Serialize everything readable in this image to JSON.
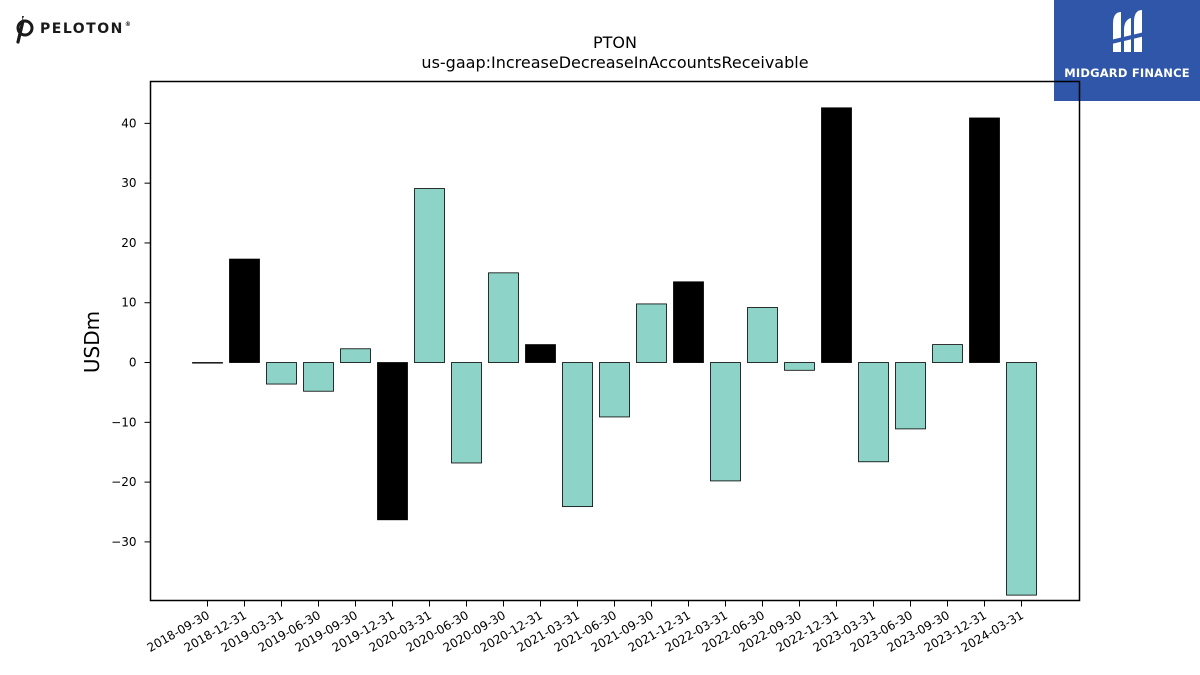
{
  "logos": {
    "left_brand": "PELOTON",
    "right_brand": "MIDGARD FINANCE"
  },
  "chart_data": {
    "type": "bar",
    "title": "PTON",
    "subtitle": "us-gaap:IncreaseDecreaseInAccountsReceivable",
    "xlabel": "",
    "ylabel": "USDm",
    "ylim": [
      -39.8,
      47
    ],
    "yticks": [
      -30,
      -20,
      -10,
      0,
      10,
      20,
      30,
      40
    ],
    "grid": false,
    "colors": {
      "quarter": "#8dd3c7",
      "fiscal_q4": "#000000",
      "edge": "#000000"
    },
    "categories": [
      "2018-09-30",
      "2018-12-31",
      "2019-03-31",
      "2019-06-30",
      "2019-09-30",
      "2019-12-31",
      "2020-03-31",
      "2020-06-30",
      "2020-09-30",
      "2020-12-31",
      "2021-03-31",
      "2021-06-30",
      "2021-09-30",
      "2021-12-31",
      "2022-03-31",
      "2022-06-30",
      "2022-09-30",
      "2022-12-31",
      "2023-03-31",
      "2023-06-30",
      "2023-09-30",
      "2023-12-31",
      "2024-03-31"
    ],
    "values": [
      0,
      17.3,
      -3.6,
      -4.8,
      2.3,
      -26.3,
      29.1,
      -16.8,
      15.0,
      3.0,
      -24.1,
      -9.1,
      9.8,
      13.5,
      -19.8,
      9.2,
      -1.3,
      42.6,
      -16.6,
      -11.1,
      3.0,
      40.9,
      -38.9
    ],
    "highlight": [
      false,
      true,
      false,
      false,
      false,
      true,
      false,
      false,
      false,
      true,
      false,
      false,
      false,
      true,
      false,
      false,
      false,
      true,
      false,
      false,
      false,
      true,
      false
    ]
  }
}
